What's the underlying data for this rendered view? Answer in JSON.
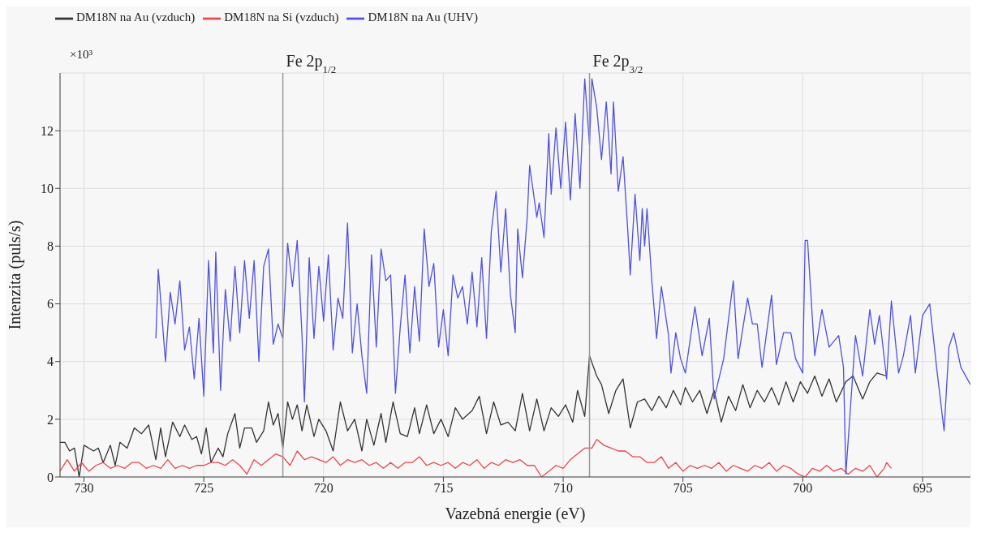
{
  "chart_data": {
    "type": "line",
    "xlabel": "Vazebná energie (eV)",
    "ylabel": "Intenzita (puls/s)",
    "xlim": [
      731,
      693
    ],
    "xticks": [
      730,
      725,
      720,
      715,
      710,
      705,
      700,
      695
    ],
    "ylim": [
      0,
      14
    ],
    "yticks": [
      0,
      2,
      4,
      6,
      8,
      10,
      12
    ],
    "annotations": [
      "×10³"
    ],
    "grid": true,
    "legend": "top left",
    "marker": "none",
    "line_style": "solid",
    "ref_lines": [
      {
        "axis": "x",
        "value": 721.7,
        "label": "Fe 2p$_{1/2}$",
        "color": "#999999"
      },
      {
        "axis": "x",
        "value": 708.9,
        "label": "Fe 2p$_{3/2}$",
        "color": "#999999"
      }
    ],
    "series": [
      {
        "name": "DM18N na Au (vzduch)",
        "color": "#333333",
        "x": [
          731.0,
          730.8,
          730.6,
          730.4,
          730.2,
          730.0,
          729.6,
          729.4,
          729.2,
          728.9,
          728.7,
          728.5,
          728.2,
          727.9,
          727.6,
          727.3,
          727.0,
          726.8,
          726.6,
          726.3,
          726.0,
          725.8,
          725.5,
          725.3,
          725.1,
          724.9,
          724.7,
          724.4,
          724.2,
          724.0,
          723.7,
          723.5,
          723.3,
          723.0,
          722.8,
          722.5,
          722.3,
          722.1,
          721.9,
          721.7,
          721.5,
          721.3,
          721.1,
          720.9,
          720.7,
          720.4,
          720.2,
          719.9,
          719.6,
          719.3,
          719.0,
          718.7,
          718.4,
          718.2,
          717.9,
          717.6,
          717.4,
          717.1,
          716.8,
          716.5,
          716.2,
          716.0,
          715.7,
          715.4,
          715.1,
          714.8,
          714.5,
          714.2,
          713.8,
          713.5,
          713.2,
          712.9,
          712.6,
          712.3,
          712.0,
          711.7,
          711.4,
          711.1,
          710.8,
          710.5,
          710.2,
          709.9,
          709.6,
          709.4,
          709.1,
          708.9,
          708.6,
          708.4,
          708.1,
          707.8,
          707.5,
          707.2,
          706.9,
          706.6,
          706.3,
          706.0,
          705.7,
          705.4,
          705.1,
          704.9,
          704.6,
          704.3,
          704.0,
          703.7,
          703.4,
          703.1,
          702.8,
          702.5,
          702.2,
          701.9,
          701.6,
          701.3,
          701.0,
          700.7,
          700.4,
          700.1,
          699.8,
          699.5,
          699.2,
          698.9,
          698.6,
          698.2,
          697.9,
          697.5,
          697.2,
          696.9,
          696.5
        ],
        "values": [
          1.2,
          1.2,
          0.9,
          1.0,
          0.0,
          1.1,
          0.9,
          1.0,
          0.5,
          1.1,
          0.4,
          1.2,
          1.0,
          1.7,
          1.5,
          1.8,
          0.6,
          1.7,
          0.7,
          1.9,
          1.4,
          1.8,
          1.3,
          1.4,
          0.8,
          1.7,
          0.5,
          1.0,
          0.7,
          1.5,
          2.2,
          1.0,
          1.7,
          1.7,
          1.2,
          1.6,
          2.6,
          1.8,
          2.2,
          1.0,
          2.6,
          2.0,
          2.5,
          1.6,
          2.5,
          1.4,
          2.0,
          1.6,
          0.9,
          2.6,
          1.6,
          2.0,
          0.9,
          2.0,
          1.1,
          2.2,
          1.2,
          2.6,
          1.5,
          1.4,
          2.4,
          1.5,
          2.5,
          1.5,
          2.0,
          1.4,
          2.4,
          2.0,
          2.3,
          2.8,
          1.5,
          2.6,
          1.8,
          1.9,
          1.6,
          2.9,
          1.6,
          2.7,
          1.6,
          2.4,
          2.1,
          2.5,
          1.9,
          3.0,
          2.1,
          4.2,
          3.5,
          3.2,
          2.2,
          3.0,
          3.4,
          1.7,
          2.6,
          2.7,
          2.3,
          2.8,
          2.4,
          3.0,
          2.5,
          3.1,
          2.6,
          3.0,
          2.2,
          3.0,
          1.9,
          2.8,
          2.3,
          3.2,
          2.4,
          3.0,
          2.6,
          3.1,
          2.5,
          3.3,
          2.6,
          3.3,
          2.9,
          3.5,
          2.8,
          3.4,
          2.6,
          3.3,
          3.5,
          2.7,
          3.3,
          3.6,
          3.5
        ]
      },
      {
        "name": "DM18N na Si (vzduch)",
        "color": "#e8474f",
        "x": [
          731.0,
          730.7,
          730.4,
          730.1,
          729.8,
          729.5,
          729.2,
          728.9,
          728.6,
          728.3,
          728.0,
          727.7,
          727.4,
          727.1,
          726.8,
          726.5,
          726.2,
          725.9,
          725.6,
          725.3,
          725.0,
          724.7,
          724.4,
          724.1,
          723.8,
          723.5,
          723.2,
          722.9,
          722.6,
          722.3,
          722.0,
          721.7,
          721.4,
          721.1,
          720.8,
          720.5,
          720.2,
          719.9,
          719.6,
          719.3,
          719.0,
          718.7,
          718.4,
          718.1,
          717.8,
          717.5,
          717.2,
          716.9,
          716.6,
          716.3,
          716.0,
          715.7,
          715.4,
          715.1,
          714.8,
          714.5,
          714.2,
          713.9,
          713.6,
          713.3,
          713.0,
          712.7,
          712.4,
          712.1,
          711.8,
          711.5,
          711.2,
          710.9,
          710.6,
          710.3,
          710.0,
          709.7,
          709.4,
          709.1,
          708.8,
          708.6,
          708.3,
          708.0,
          707.7,
          707.4,
          707.1,
          706.8,
          706.5,
          706.2,
          705.9,
          705.6,
          705.3,
          705.0,
          704.7,
          704.4,
          704.1,
          703.8,
          703.5,
          703.2,
          702.9,
          702.6,
          702.3,
          702.0,
          701.7,
          701.4,
          701.1,
          700.8,
          700.5,
          700.2,
          699.9,
          699.6,
          699.3,
          699.0,
          698.7,
          698.4,
          698.1,
          697.8,
          697.5,
          697.2,
          696.9,
          696.6,
          696.5,
          696.3
        ],
        "values": [
          0.2,
          0.6,
          0.2,
          0.5,
          0.2,
          0.4,
          0.5,
          0.3,
          0.4,
          0.3,
          0.5,
          0.5,
          0.3,
          0.4,
          0.3,
          0.6,
          0.3,
          0.4,
          0.3,
          0.4,
          0.4,
          0.5,
          0.5,
          0.4,
          0.6,
          0.4,
          0.1,
          0.6,
          0.4,
          0.6,
          0.8,
          0.7,
          0.4,
          0.9,
          0.6,
          0.7,
          0.6,
          0.5,
          0.7,
          0.4,
          0.6,
          0.5,
          0.6,
          0.4,
          0.5,
          0.3,
          0.5,
          0.3,
          0.5,
          0.5,
          0.7,
          0.4,
          0.5,
          0.4,
          0.5,
          0.3,
          0.5,
          0.4,
          0.6,
          0.3,
          0.5,
          0.4,
          0.6,
          0.5,
          0.6,
          0.4,
          0.4,
          0.0,
          0.2,
          0.4,
          0.3,
          0.6,
          0.8,
          1.0,
          1.0,
          1.3,
          1.1,
          1.0,
          0.9,
          0.9,
          0.7,
          0.7,
          0.5,
          0.5,
          0.7,
          0.3,
          0.5,
          0.2,
          0.4,
          0.3,
          0.4,
          0.3,
          0.5,
          0.2,
          0.4,
          0.3,
          0.2,
          0.4,
          0.3,
          0.5,
          0.2,
          0.4,
          0.3,
          0.1,
          0.0,
          0.3,
          0.2,
          0.4,
          0.2,
          0.3,
          0.1,
          0.3,
          0.2,
          0.4,
          0.0,
          0.3,
          0.5,
          0.3
        ]
      },
      {
        "name": "DM18N na Au (UHV)",
        "color": "#5050e0",
        "x": [
          727.0,
          726.9,
          726.6,
          726.4,
          726.2,
          726.0,
          725.8,
          725.6,
          725.4,
          725.2,
          725.0,
          724.8,
          724.6,
          724.5,
          724.3,
          724.1,
          723.9,
          723.7,
          723.5,
          723.3,
          723.1,
          722.9,
          722.7,
          722.5,
          722.3,
          722.1,
          721.9,
          721.7,
          721.5,
          721.3,
          721.1,
          720.9,
          720.8,
          720.6,
          720.4,
          720.2,
          720.0,
          719.8,
          719.6,
          719.4,
          719.2,
          719.0,
          718.8,
          718.6,
          718.4,
          718.2,
          718.0,
          717.8,
          717.6,
          717.4,
          717.2,
          717.0,
          716.8,
          716.6,
          716.4,
          716.2,
          716.0,
          715.8,
          715.6,
          715.4,
          715.2,
          715.0,
          714.8,
          714.6,
          714.4,
          714.2,
          714.0,
          713.8,
          713.6,
          713.4,
          713.2,
          713.0,
          712.8,
          712.6,
          712.4,
          712.2,
          712.0,
          711.9,
          711.7,
          711.5,
          711.4,
          711.1,
          711.0,
          710.8,
          710.6,
          710.5,
          710.3,
          710.1,
          709.9,
          709.7,
          709.5,
          709.3,
          709.1,
          708.9,
          708.8,
          708.6,
          708.4,
          708.2,
          708.0,
          707.9,
          707.7,
          707.5,
          707.3,
          707.2,
          707.0,
          706.8,
          706.7,
          706.6,
          706.5,
          706.3,
          706.1,
          705.9,
          705.6,
          705.5,
          705.3,
          705.1,
          704.9,
          704.5,
          704.2,
          703.9,
          703.7,
          703.3,
          702.9,
          702.7,
          702.3,
          702.1,
          701.9,
          701.7,
          701.3,
          701.1,
          700.8,
          700.5,
          700.3,
          700.0,
          699.9,
          699.8,
          699.5,
          699.2,
          698.9,
          698.5,
          698.3,
          698.2,
          697.8,
          697.5,
          697.2,
          697.0,
          696.8,
          696.5,
          696.3,
          696.0,
          695.8,
          695.5,
          695.3,
          695.0,
          694.7,
          694.4,
          694.1,
          693.9,
          693.7,
          693.4,
          693.0
        ],
        "values": [
          4.8,
          7.2,
          4.0,
          6.4,
          5.3,
          6.8,
          4.4,
          5.2,
          3.4,
          5.5,
          2.8,
          7.5,
          4.3,
          7.8,
          3.0,
          6.5,
          4.7,
          7.3,
          5.0,
          7.5,
          5.5,
          7.5,
          4.0,
          7.3,
          7.9,
          4.6,
          5.3,
          4.8,
          8.1,
          6.6,
          8.2,
          4.9,
          2.6,
          7.6,
          4.8,
          7.3,
          5.4,
          7.7,
          4.4,
          6.2,
          5.5,
          8.8,
          4.3,
          6.0,
          4.2,
          2.9,
          7.7,
          4.5,
          7.9,
          6.8,
          7.0,
          2.9,
          5.2,
          7.0,
          4.3,
          6.6,
          4.7,
          8.6,
          6.6,
          7.4,
          4.5,
          5.8,
          4.2,
          7.0,
          6.2,
          6.6,
          5.3,
          7.1,
          5.2,
          7.6,
          4.8,
          8.5,
          9.9,
          7.1,
          9.3,
          6.3,
          5.0,
          8.6,
          6.9,
          9.0,
          10.8,
          9.0,
          9.5,
          8.3,
          11.9,
          9.8,
          12.1,
          10.0,
          12.3,
          9.6,
          12.6,
          10.0,
          13.8,
          11.5,
          13.8,
          12.8,
          11.0,
          13.0,
          10.5,
          13.0,
          9.9,
          11.1,
          8.5,
          7.0,
          9.8,
          7.5,
          9.3,
          8.0,
          9.3,
          6.8,
          4.8,
          6.6,
          4.9,
          3.6,
          5.0,
          4.1,
          3.6,
          5.9,
          4.2,
          5.5,
          2.7,
          4.1,
          6.8,
          4.1,
          6.2,
          5.3,
          5.3,
          3.8,
          6.3,
          3.9,
          5.0,
          5.0,
          4.1,
          3.6,
          8.2,
          8.2,
          4.2,
          5.8,
          4.5,
          4.9,
          3.8,
          0.1,
          4.9,
          3.5,
          5.8,
          4.6,
          5.6,
          3.4,
          6.1,
          3.6,
          4.2,
          5.6,
          3.6,
          5.6,
          6.0,
          3.7,
          1.6,
          4.5,
          5.0,
          3.8,
          3.2
        ]
      }
    ]
  }
}
